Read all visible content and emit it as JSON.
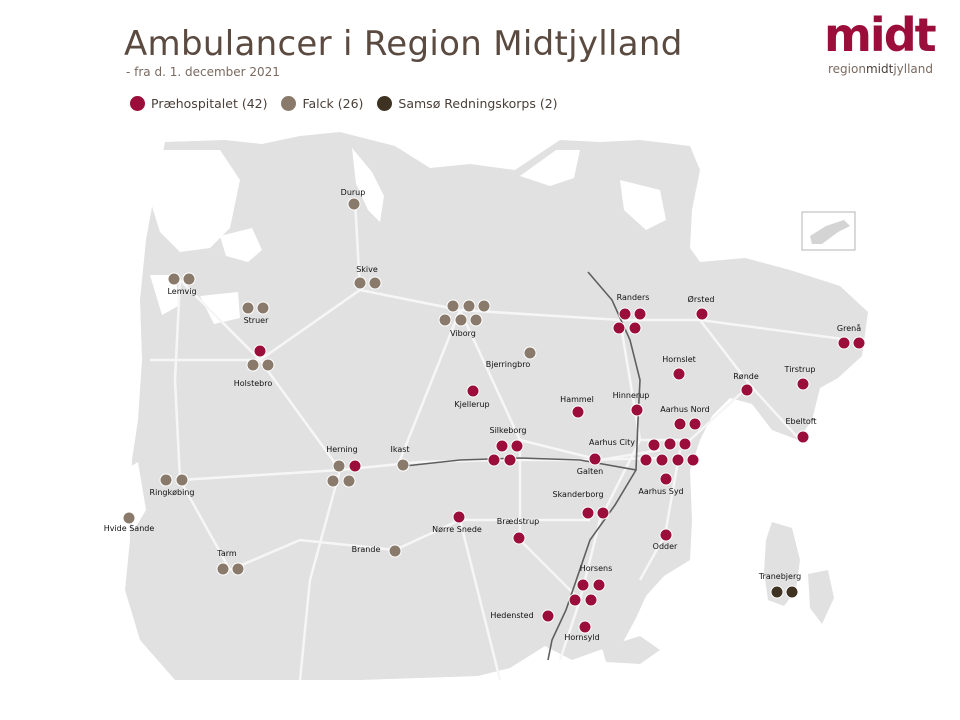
{
  "title": "Ambulancer i Region Midtjylland",
  "subtitle": "- fra d. 1. december 2021",
  "logo": {
    "word": "midt",
    "sub_prefix": "region",
    "sub_mid": "midt",
    "sub_suffix": "jylland"
  },
  "legend": [
    {
      "label": "Præhospitalet (42)",
      "color": "#9b0d3a"
    },
    {
      "label": "Falck (26)",
      "color": "#8a7a6b"
    },
    {
      "label": "Samsø Redningskorps (2)",
      "color": "#3e3222"
    }
  ],
  "colors": {
    "prae": "#9b0d3a",
    "falck": "#8a7a6b",
    "samso": "#3e3222",
    "land": "#e1e1e1",
    "road": "#f6f6f6"
  },
  "places": [
    {
      "name": "Durup",
      "provider": "falck",
      "count": 1
    },
    {
      "name": "Skive",
      "provider": "falck",
      "count": 2
    },
    {
      "name": "Lemvig",
      "provider": "falck",
      "count": 2
    },
    {
      "name": "Struer",
      "provider": "falck",
      "count": 2
    },
    {
      "name": "Holstebro",
      "provider": "mixed",
      "count": 3
    },
    {
      "name": "Viborg",
      "provider": "falck",
      "count": 6
    },
    {
      "name": "Bjerringbro",
      "provider": "falck",
      "count": 1
    },
    {
      "name": "Randers",
      "provider": "prae",
      "count": 4
    },
    {
      "name": "Ørsted",
      "provider": "prae",
      "count": 1
    },
    {
      "name": "Grenå",
      "provider": "prae",
      "count": 2
    },
    {
      "name": "Hornslet",
      "provider": "prae",
      "count": 1
    },
    {
      "name": "Rønde",
      "provider": "prae",
      "count": 1
    },
    {
      "name": "Tirstrup",
      "provider": "prae",
      "count": 1
    },
    {
      "name": "Ebeltoft",
      "provider": "prae",
      "count": 1
    },
    {
      "name": "Kjellerup",
      "provider": "prae",
      "count": 1
    },
    {
      "name": "Hammel",
      "provider": "prae",
      "count": 1
    },
    {
      "name": "Hinnerup",
      "provider": "prae",
      "count": 1
    },
    {
      "name": "Aarhus Nord",
      "provider": "prae",
      "count": 2
    },
    {
      "name": "Silkeborg",
      "provider": "prae",
      "count": 4
    },
    {
      "name": "Aarhus City",
      "provider": "prae",
      "count": 6
    },
    {
      "name": "Galten",
      "provider": "prae",
      "count": 1
    },
    {
      "name": "Aarhus Syd",
      "provider": "prae",
      "count": 1
    },
    {
      "name": "Herning",
      "provider": "mixed",
      "count": 5
    },
    {
      "name": "Ikast",
      "provider": "falck",
      "count": 1
    },
    {
      "name": "Ringkøbing",
      "provider": "falck",
      "count": 2
    },
    {
      "name": "Hvide Sande",
      "provider": "falck",
      "count": 1
    },
    {
      "name": "Skanderborg",
      "provider": "prae",
      "count": 2
    },
    {
      "name": "Nørre Snede",
      "provider": "prae",
      "count": 1
    },
    {
      "name": "Brædstrup",
      "provider": "prae",
      "count": 1
    },
    {
      "name": "Odder",
      "provider": "prae",
      "count": 1
    },
    {
      "name": "Brande",
      "provider": "falck",
      "count": 1
    },
    {
      "name": "Tarm",
      "provider": "falck",
      "count": 2
    },
    {
      "name": "Horsens",
      "provider": "prae",
      "count": 4
    },
    {
      "name": "Hedensted",
      "provider": "prae",
      "count": 1
    },
    {
      "name": "Hornsyld",
      "provider": "prae",
      "count": 1
    },
    {
      "name": "Tranebjerg",
      "provider": "samso",
      "count": 2
    }
  ]
}
